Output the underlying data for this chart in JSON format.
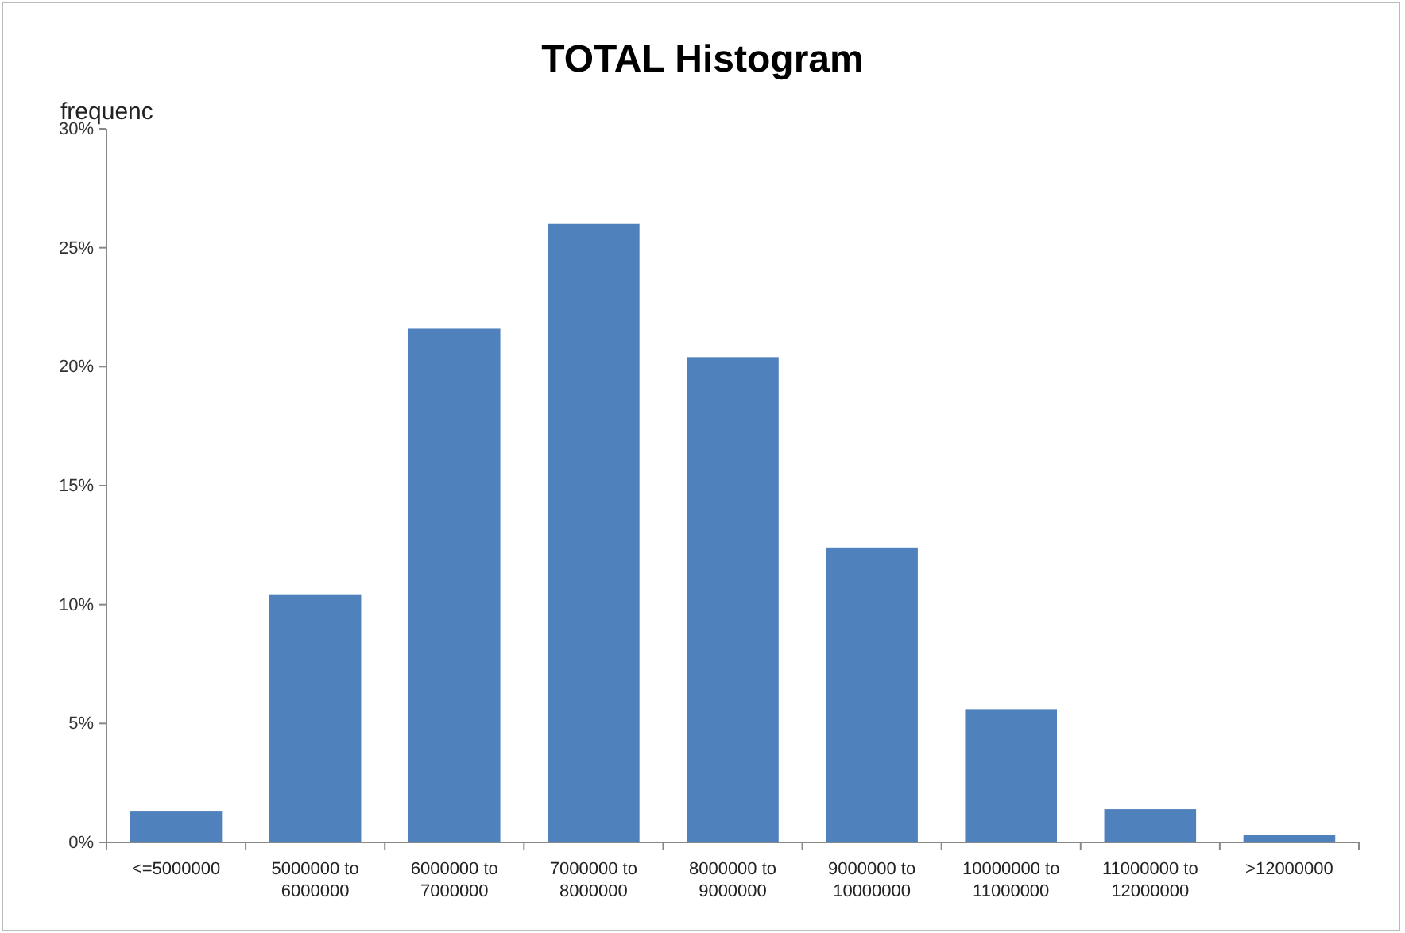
{
  "chart_data": {
    "type": "bar",
    "title": "TOTAL Histogram",
    "ylabel": "frequenc",
    "categories": [
      "<=5000000",
      "5000000 to 6000000",
      "6000000 to 7000000",
      "7000000 to 8000000",
      "8000000 to 9000000",
      "9000000 to 10000000",
      "10000000 to 11000000",
      "11000000 to 12000000",
      ">12000000"
    ],
    "values": [
      1.3,
      10.4,
      21.6,
      26.0,
      20.4,
      12.4,
      5.6,
      1.4,
      0.3
    ],
    "color": "#4f81bd",
    "ylim": [
      0,
      30
    ],
    "yticks": [
      {
        "value": 0,
        "label": "0%"
      },
      {
        "value": 5,
        "label": "5%"
      },
      {
        "value": 10,
        "label": "10%"
      },
      {
        "value": 15,
        "label": "15%"
      },
      {
        "value": 20,
        "label": "20%"
      },
      {
        "value": 25,
        "label": "25%"
      },
      {
        "value": 30,
        "label": "30%"
      }
    ],
    "grid": false
  }
}
